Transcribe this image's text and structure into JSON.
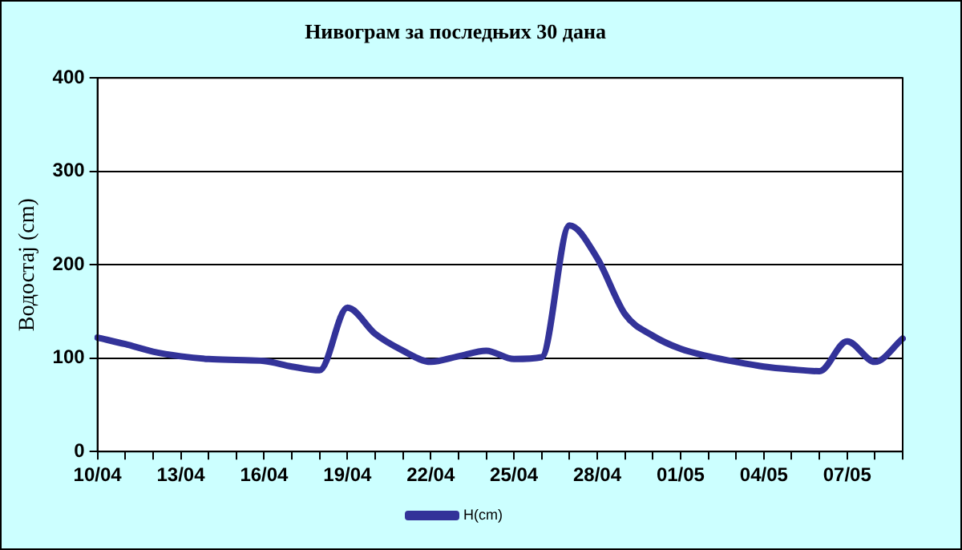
{
  "chart_data": {
    "type": "line",
    "title": "Нивограм за последњих 30 дана",
    "ylabel": "Водостај (cm)",
    "categories": [
      "10/04",
      null,
      null,
      "13/04",
      null,
      null,
      "16/04",
      null,
      null,
      "19/04",
      null,
      null,
      "22/04",
      null,
      null,
      "25/04",
      null,
      null,
      "28/04",
      null,
      null,
      "01/05",
      null,
      null,
      "04/05",
      null,
      null,
      "07/05",
      null,
      null
    ],
    "series": [
      {
        "name": "H(cm)",
        "color": "#333399",
        "values": [
          122,
          115,
          107,
          102,
          99,
          98,
          97,
          91,
          87,
          154,
          126,
          108,
          96,
          102,
          108,
          99,
          101,
          242,
          207,
          147,
          124,
          110,
          102,
          96,
          91,
          88,
          86,
          118,
          96,
          121
        ]
      }
    ],
    "ylim": [
      0,
      400
    ],
    "yticks": [
      0,
      100,
      200,
      300,
      400
    ],
    "grid": "y",
    "legend": "bottom",
    "marker": "none",
    "line_style": "solid"
  }
}
